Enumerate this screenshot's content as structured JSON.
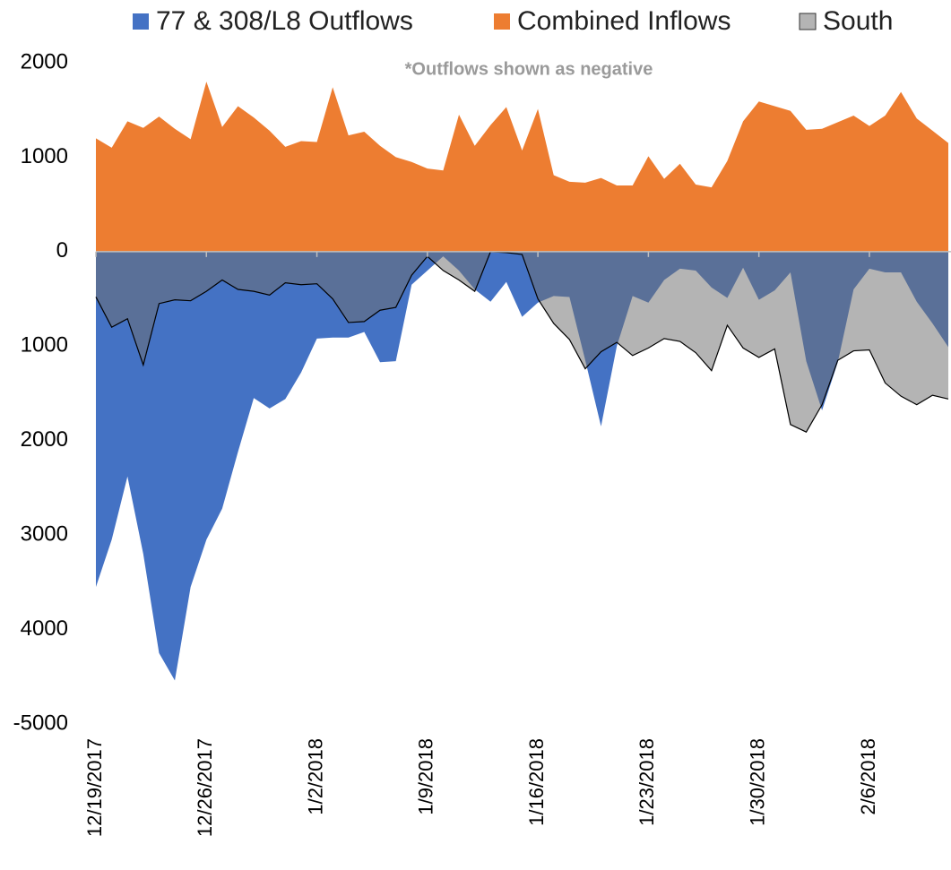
{
  "chart_data": {
    "type": "area",
    "annotation": "*Outflows shown as negative",
    "categories": [
      "12/19/2017",
      null,
      null,
      null,
      null,
      null,
      null,
      "12/26/2017",
      null,
      null,
      null,
      null,
      null,
      null,
      "1/2/2018",
      null,
      null,
      null,
      null,
      null,
      null,
      "1/9/2018",
      null,
      null,
      null,
      null,
      null,
      null,
      "1/16/2018",
      null,
      null,
      null,
      null,
      null,
      null,
      "1/23/2018",
      null,
      null,
      null,
      null,
      null,
      null,
      "1/30/2018",
      null,
      null,
      null,
      null,
      null,
      null,
      "2/6/2018",
      null,
      null,
      null,
      null,
      null
    ],
    "series": [
      {
        "name": "77 & 308/L8 Outflows",
        "color": "#4472c4",
        "opacity": 1,
        "values": [
          -3550,
          -3050,
          -2380,
          -3200,
          -4250,
          -4540,
          -3550,
          -3050,
          -2720,
          -2120,
          -1550,
          -1660,
          -1560,
          -1280,
          -920,
          -910,
          -910,
          -850,
          -1170,
          -1160,
          -350,
          -200,
          -50,
          -200,
          -400,
          -530,
          -320,
          -690,
          -540,
          -470,
          -480,
          -1150,
          -1850,
          -1000,
          -470,
          -540,
          -300,
          -180,
          -200,
          -380,
          -490,
          -170,
          -510,
          -410,
          -220,
          -1160,
          -1680,
          -1170,
          -400,
          -180,
          -220,
          -220,
          -530,
          -760,
          -1010
        ]
      },
      {
        "name": "Combined Inflows",
        "color": "#ed7d31",
        "opacity": 1,
        "values": [
          1200,
          1100,
          1380,
          1310,
          1430,
          1300,
          1190,
          1800,
          1320,
          1540,
          1420,
          1280,
          1110,
          1170,
          1160,
          1740,
          1230,
          1270,
          1120,
          1000,
          950,
          880,
          860,
          1450,
          1120,
          1340,
          1530,
          1070,
          1510,
          810,
          740,
          730,
          780,
          700,
          700,
          1010,
          770,
          930,
          710,
          680,
          960,
          1380,
          1590,
          1540,
          1490,
          1290,
          1300,
          1370,
          1440,
          1330,
          1440,
          1690,
          1410,
          1280,
          1150
        ]
      },
      {
        "name": "South",
        "color": "#6f6f6f",
        "opacity": 0.52,
        "outline": "#000000",
        "values": [
          -480,
          -800,
          -710,
          -1200,
          -550,
          -510,
          -520,
          -420,
          -300,
          -400,
          -420,
          -460,
          -330,
          -350,
          -340,
          -500,
          -750,
          -740,
          -620,
          -590,
          -250,
          -50,
          -200,
          -300,
          -420,
          0,
          -10,
          -30,
          -500,
          -760,
          -930,
          -1240,
          -1060,
          -960,
          -1100,
          -1020,
          -920,
          -950,
          -1070,
          -1260,
          -780,
          -1020,
          -1120,
          -1030,
          -1830,
          -1910,
          -1620,
          -1150,
          -1050,
          -1040,
          -1390,
          -1530,
          -1620,
          -1520,
          -1560
        ]
      }
    ],
    "draw_order": [
      1,
      0,
      2
    ],
    "ylim": [
      -5000,
      2000
    ],
    "yticks": [
      -5000,
      {
        "value": -4000,
        "label": "4000"
      },
      {
        "value": -3000,
        "label": "3000"
      },
      {
        "value": -2000,
        "label": "2000"
      },
      {
        "value": -1000,
        "label": "1000"
      },
      0,
      1000,
      2000
    ],
    "grid": false
  }
}
